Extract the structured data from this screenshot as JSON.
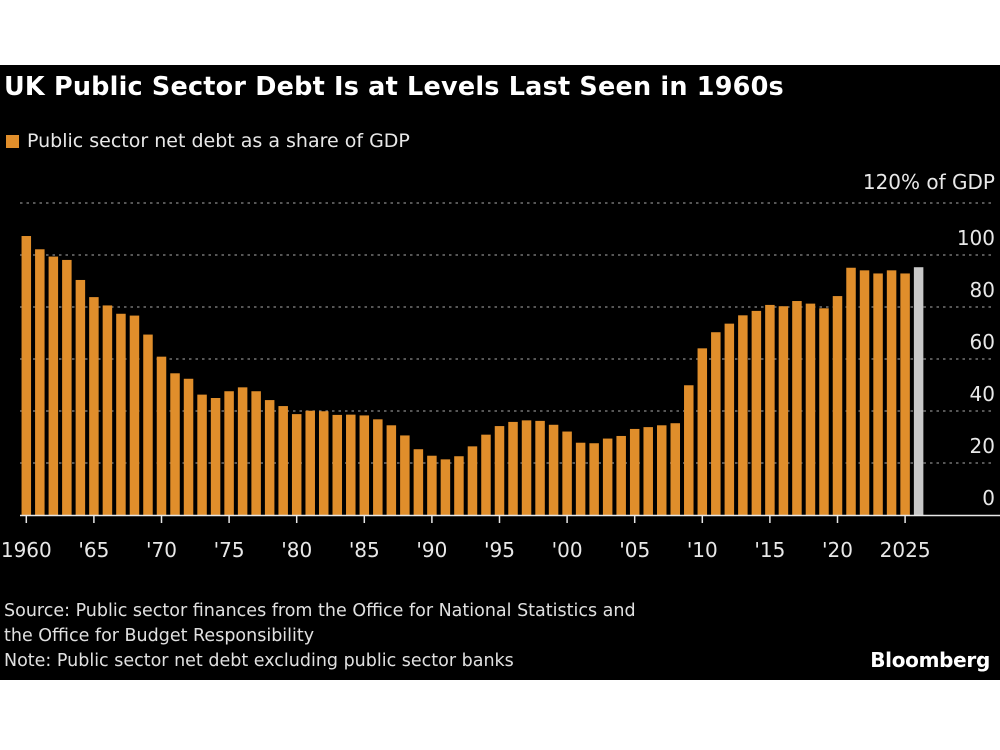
{
  "title": "UK Public Sector Debt Is at Levels Last Seen in 1960s",
  "footer": {
    "source_line1": "Source: Public sector finances from the Office for National Statistics and",
    "source_line2": "the Office for Budget Responsibility",
    "note": "Note: Public sector net debt excluding public sector banks",
    "brand": "Bloomberg"
  },
  "colors": {
    "bar": "#e08e2b",
    "forecast_bar": "#c8c8c8",
    "background": "#000000",
    "text": "#ffffff"
  },
  "chart_data": {
    "type": "bar",
    "title": "UK Public Sector Debt Is at Levels Last Seen in 1960s",
    "legend": [
      "Public sector net debt as a share of GDP"
    ],
    "legend_placement": "top-left",
    "y_unit_label": "120% of GDP",
    "ylim": [
      0,
      120
    ],
    "y_ticks": [
      0,
      20,
      40,
      60,
      80,
      100,
      120
    ],
    "y_tick_labels": [
      "0",
      "20",
      "40",
      "60",
      "80",
      "100",
      "120% of GDP"
    ],
    "grid": true,
    "x_ticks": [
      1960,
      1965,
      1970,
      1975,
      1980,
      1985,
      1990,
      1995,
      2000,
      2005,
      2010,
      2015,
      2020,
      2025
    ],
    "x_tick_labels": [
      "1960",
      "'65",
      "'70",
      "'75",
      "'80",
      "'85",
      "'90",
      "'95",
      "'00",
      "'05",
      "'10",
      "'15",
      "'20",
      "2025"
    ],
    "years": [
      1960,
      1961,
      1962,
      1963,
      1964,
      1965,
      1966,
      1967,
      1968,
      1969,
      1970,
      1971,
      1972,
      1973,
      1974,
      1975,
      1976,
      1977,
      1978,
      1979,
      1980,
      1981,
      1982,
      1983,
      1984,
      1985,
      1986,
      1987,
      1988,
      1989,
      1990,
      1991,
      1992,
      1993,
      1994,
      1995,
      1996,
      1997,
      1998,
      1999,
      2000,
      2001,
      2002,
      2003,
      2004,
      2005,
      2006,
      2007,
      2008,
      2009,
      2010,
      2011,
      2012,
      2013,
      2014,
      2015,
      2016,
      2017,
      2018,
      2019,
      2020,
      2021,
      2022,
      2023,
      2024,
      2025,
      2026
    ],
    "values": [
      107.3,
      102.2,
      99.4,
      98.1,
      90.4,
      83.8,
      80.6,
      77.4,
      76.7,
      69.4,
      60.9,
      54.5,
      52.4,
      46.3,
      45.0,
      47.6,
      49.1,
      47.6,
      44.2,
      41.9,
      38.8,
      40.1,
      39.9,
      38.5,
      38.6,
      38.3,
      36.8,
      34.5,
      30.6,
      25.3,
      22.8,
      21.4,
      22.6,
      26.4,
      30.9,
      34.2,
      35.8,
      36.4,
      36.2,
      34.7,
      32.1,
      27.8,
      27.6,
      29.4,
      30.4,
      33.1,
      33.8,
      34.5,
      35.3,
      49.9,
      64.1,
      70.3,
      73.6,
      76.8,
      78.5,
      80.8,
      80.3,
      82.3,
      81.3,
      79.5,
      84.2,
      95.1,
      94.1,
      92.9,
      94.1,
      92.9,
      95.3
    ],
    "highlighted": [
      {
        "year": 2026,
        "color": "#c8c8c8"
      }
    ]
  }
}
